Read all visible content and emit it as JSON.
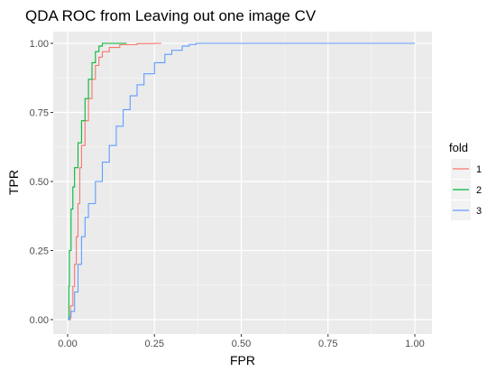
{
  "chart_data": {
    "type": "line",
    "title": "QDA ROC from Leaving out one image CV",
    "xlabel": "FPR",
    "ylabel": "TPR",
    "xlim": [
      0,
      1
    ],
    "ylim": [
      0,
      1
    ],
    "x_ticks": [
      "0.00",
      "0.25",
      "0.50",
      "0.75",
      "1.00"
    ],
    "y_ticks": [
      "0.00",
      "0.25",
      "0.50",
      "0.75",
      "1.00"
    ],
    "grid": true,
    "legend": {
      "title": "fold",
      "position": "right"
    },
    "series": [
      {
        "name": "1",
        "color": "#F8766D",
        "x": [
          0,
          0.008,
          0.015,
          0.02,
          0.025,
          0.03,
          0.035,
          0.04,
          0.05,
          0.06,
          0.07,
          0.08,
          0.09,
          0.1,
          0.12,
          0.15,
          0.2,
          0.25,
          0.27
        ],
        "y": [
          0,
          0.05,
          0.12,
          0.2,
          0.3,
          0.42,
          0.55,
          0.63,
          0.72,
          0.8,
          0.87,
          0.92,
          0.95,
          0.97,
          0.985,
          0.995,
          0.999,
          1.0,
          1.0
        ]
      },
      {
        "name": "2",
        "color": "#00BA38",
        "x": [
          0,
          0.003,
          0.005,
          0.01,
          0.015,
          0.02,
          0.03,
          0.04,
          0.05,
          0.06,
          0.07,
          0.08,
          0.09,
          0.1,
          0.12,
          0.14,
          0.17
        ],
        "y": [
          0,
          0.12,
          0.25,
          0.4,
          0.48,
          0.55,
          0.64,
          0.72,
          0.8,
          0.87,
          0.93,
          0.97,
          0.99,
          1.0,
          1.0,
          1.0,
          1.0
        ]
      },
      {
        "name": "3",
        "color": "#619CFF",
        "x": [
          0,
          0.005,
          0.01,
          0.02,
          0.03,
          0.04,
          0.05,
          0.06,
          0.08,
          0.1,
          0.12,
          0.14,
          0.16,
          0.18,
          0.2,
          0.22,
          0.25,
          0.28,
          0.3,
          0.33,
          0.35,
          0.37,
          0.4,
          0.6,
          0.8,
          1.0
        ],
        "y": [
          0,
          0.01,
          0.03,
          0.1,
          0.2,
          0.3,
          0.37,
          0.42,
          0.5,
          0.57,
          0.63,
          0.7,
          0.76,
          0.81,
          0.85,
          0.89,
          0.93,
          0.96,
          0.975,
          0.99,
          0.996,
          1.0,
          1.0,
          1.0,
          1.0,
          1.0
        ]
      }
    ]
  }
}
